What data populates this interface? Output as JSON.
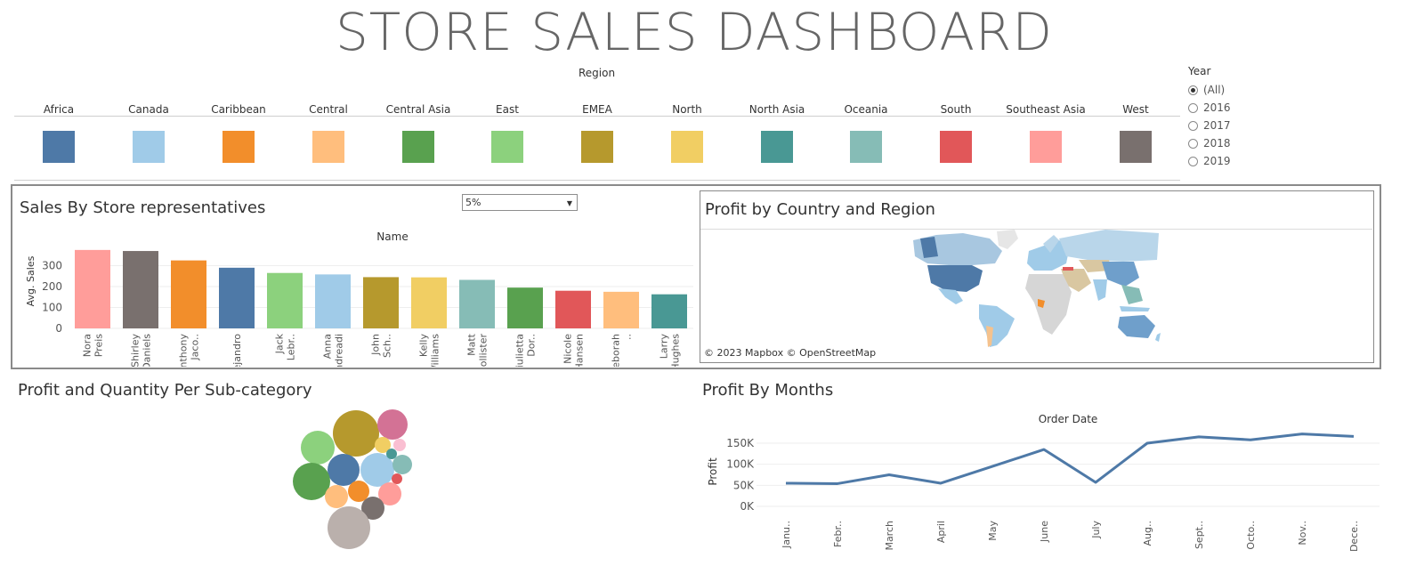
{
  "dashboard": {
    "title": "STORE SALES DASHBOARD"
  },
  "region_legend": {
    "title": "Region",
    "items": [
      {
        "label": "Africa",
        "color": "#4e79a7"
      },
      {
        "label": "Canada",
        "color": "#a0cbe8"
      },
      {
        "label": "Caribbean",
        "color": "#f28e2b"
      },
      {
        "label": "Central",
        "color": "#ffbe7d"
      },
      {
        "label": "Central Asia",
        "color": "#59a14f"
      },
      {
        "label": "East",
        "color": "#8cd17d"
      },
      {
        "label": "EMEA",
        "color": "#b6992d"
      },
      {
        "label": "North",
        "color": "#f1ce63"
      },
      {
        "label": "North Asia",
        "color": "#499894"
      },
      {
        "label": "Oceania",
        "color": "#86bcb6"
      },
      {
        "label": "South",
        "color": "#e15759"
      },
      {
        "label": "Southeast Asia",
        "color": "#ff9d9a"
      },
      {
        "label": "West",
        "color": "#79706e"
      }
    ]
  },
  "year_filter": {
    "label": "Year",
    "options": [
      "(All)",
      "2016",
      "2017",
      "2018",
      "2019"
    ],
    "selected": "(All)"
  },
  "sales_panel": {
    "title": "Sales By Store representatives",
    "dropdown_value": "5%",
    "dropdown_icon": "caret-down-icon"
  },
  "map_panel": {
    "title": "Profit by Country and Region",
    "attribution": "© 2023 Mapbox  © OpenStreetMap"
  },
  "bubble_panel": {
    "title": "Profit and Quantity Per Sub-category"
  },
  "months_panel": {
    "title": "Profit By Months"
  },
  "chart_data": [
    {
      "type": "bar",
      "title": "Sales By Store representatives",
      "xlabel": "Name",
      "ylabel": "Avg. Sales",
      "ylim": [
        0,
        400
      ],
      "yticks": [
        0,
        100,
        200,
        300
      ],
      "categories": [
        [
          "Nora",
          "Preis"
        ],
        [
          "Shirley",
          "Daniels"
        ],
        [
          "Anthony",
          "Jaco.."
        ],
        [
          "Alejandro"
        ],
        [
          "Jack",
          "Lebr.."
        ],
        [
          "Anna",
          "Andreadi"
        ],
        [
          "John",
          "Sch.."
        ],
        [
          "Kelly",
          "Williams"
        ],
        [
          "Matt",
          "Collister"
        ],
        [
          "Giulietta",
          "Dor.."
        ],
        [
          "Nicole",
          "Hansen"
        ],
        [
          "Deborah",
          ".."
        ],
        [
          "Larry",
          "Hughes"
        ]
      ],
      "values": [
        375,
        370,
        325,
        290,
        265,
        258,
        245,
        244,
        232,
        195,
        180,
        175,
        163
      ],
      "colors": [
        "#ff9d9a",
        "#79706e",
        "#f28e2b",
        "#4e79a7",
        "#8cd17d",
        "#a0cbe8",
        "#b6992d",
        "#f1ce63",
        "#86bcb6",
        "#59a14f",
        "#e15759",
        "#ffbe7d",
        "#499894"
      ]
    },
    {
      "type": "bubble",
      "title": "Profit and Quantity Per Sub-category",
      "bubbles": [
        {
          "color": "#b6992d",
          "size": 26
        },
        {
          "color": "#d37295",
          "size": 17
        },
        {
          "color": "#8cd17d",
          "size": 19
        },
        {
          "color": "#f1ce63",
          "size": 9
        },
        {
          "color": "#fabfd2",
          "size": 7
        },
        {
          "color": "#4e79a7",
          "size": 18
        },
        {
          "color": "#a0cbe8",
          "size": 19
        },
        {
          "color": "#499894",
          "size": 6
        },
        {
          "color": "#86bcb6",
          "size": 11
        },
        {
          "color": "#59a14f",
          "size": 21
        },
        {
          "color": "#e15759",
          "size": 6
        },
        {
          "color": "#ffbe7d",
          "size": 13
        },
        {
          "color": "#f28e2b",
          "size": 12
        },
        {
          "color": "#ff9d9a",
          "size": 13
        },
        {
          "color": "#79706e",
          "size": 13
        },
        {
          "color": "#bab0ac",
          "size": 24
        }
      ]
    },
    {
      "type": "line",
      "title": "Profit By Months",
      "xlabel": "Order Date",
      "ylabel": "Profit",
      "ylim": [
        0,
        175000
      ],
      "yticks": [
        0,
        50000,
        100000,
        150000
      ],
      "ytick_labels": [
        "0K",
        "50K",
        "100K",
        "150K"
      ],
      "categories": [
        "Janu..",
        "Febr..",
        "March",
        "April",
        "May",
        "June",
        "July",
        "Aug..",
        "Sept..",
        "Octo..",
        "Nov..",
        "Dece.."
      ],
      "series": [
        {
          "values": [
            55000,
            54000,
            75000,
            55000,
            95000,
            135000,
            57000,
            150000,
            165000,
            158000,
            172000,
            166000
          ],
          "color": "#4e79a7"
        }
      ]
    }
  ]
}
